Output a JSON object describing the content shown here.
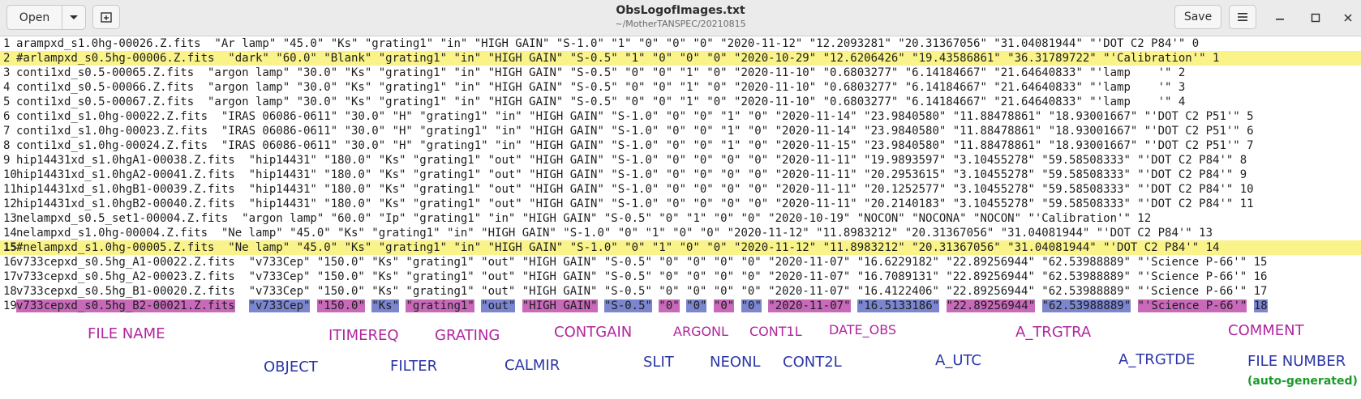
{
  "window": {
    "title": "ObsLogofImages.txt",
    "path": "~/MotherTANSPEC/20210815",
    "open_label": "Open",
    "save_label": "Save"
  },
  "lines": [
    {
      "num": "1",
      "text": "arampxd_s1.0hg-00026.Z.fits  \"Ar lamp\" \"45.0\" \"Ks\" \"grating1\" \"in\" \"HIGH GAIN\" \"S-1.0\" \"1\" \"0\" \"0\" \"0\" \"2020-11-12\" \"12.2093281\" \"20.31367056\" \"31.04081944\" \"'DOT C2 P84'\" 0"
    },
    {
      "num": "2",
      "text": "#arlampxd_s0.5hg-00006.Z.fits  \"dark\" \"60.0\" \"Blank\" \"grating1\" \"in\" \"HIGH GAIN\" \"S-0.5\" \"1\" \"0\" \"0\" \"0\" \"2020-10-29\" \"12.6206426\" \"19.43586861\" \"36.31789722\" \"'Calibration'\" 1"
    },
    {
      "num": "3",
      "text": "conti1xd_s0.5-00065.Z.fits  \"argon lamp\" \"30.0\" \"Ks\" \"grating1\" \"in\" \"HIGH GAIN\" \"S-0.5\" \"0\" \"0\" \"1\" \"0\" \"2020-11-10\" \"0.6803277\" \"6.14184667\" \"21.64640833\" \"'lamp    '\" 2"
    },
    {
      "num": "4",
      "text": "conti1xd_s0.5-00066.Z.fits  \"argon lamp\" \"30.0\" \"Ks\" \"grating1\" \"in\" \"HIGH GAIN\" \"S-0.5\" \"0\" \"0\" \"1\" \"0\" \"2020-11-10\" \"0.6803277\" \"6.14184667\" \"21.64640833\" \"'lamp    '\" 3"
    },
    {
      "num": "5",
      "text": "conti1xd_s0.5-00067.Z.fits  \"argon lamp\" \"30.0\" \"Ks\" \"grating1\" \"in\" \"HIGH GAIN\" \"S-0.5\" \"0\" \"0\" \"1\" \"0\" \"2020-11-10\" \"0.6803277\" \"6.14184667\" \"21.64640833\" \"'lamp    '\" 4"
    },
    {
      "num": "6",
      "text": "conti1xd_s1.0hg-00022.Z.fits  \"IRAS 06086-0611\" \"30.0\" \"H\" \"grating1\" \"in\" \"HIGH GAIN\" \"S-1.0\" \"0\" \"0\" \"1\" \"0\" \"2020-11-14\" \"23.9840580\" \"11.88478861\" \"18.93001667\" \"'DOT C2 P51'\" 5"
    },
    {
      "num": "7",
      "text": "conti1xd_s1.0hg-00023.Z.fits  \"IRAS 06086-0611\" \"30.0\" \"H\" \"grating1\" \"in\" \"HIGH GAIN\" \"S-1.0\" \"0\" \"0\" \"1\" \"0\" \"2020-11-14\" \"23.9840580\" \"11.88478861\" \"18.93001667\" \"'DOT C2 P51'\" 6"
    },
    {
      "num": "8",
      "text": "conti1xd_s1.0hg-00024.Z.fits  \"IRAS 06086-0611\" \"30.0\" \"H\" \"grating1\" \"in\" \"HIGH GAIN\" \"S-1.0\" \"0\" \"0\" \"1\" \"0\" \"2020-11-15\" \"23.9840580\" \"11.88478861\" \"18.93001667\" \"'DOT C2 P51'\" 7"
    },
    {
      "num": "9",
      "text": "hip14431xd_s1.0hgA1-00038.Z.fits  \"hip14431\" \"180.0\" \"Ks\" \"grating1\" \"out\" \"HIGH GAIN\" \"S-1.0\" \"0\" \"0\" \"0\" \"0\" \"2020-11-11\" \"19.9893597\" \"3.10455278\" \"59.58508333\" \"'DOT C2 P84'\" 8"
    },
    {
      "num": "10",
      "text": "hip14431xd_s1.0hgA2-00041.Z.fits  \"hip14431\" \"180.0\" \"Ks\" \"grating1\" \"out\" \"HIGH GAIN\" \"S-1.0\" \"0\" \"0\" \"0\" \"0\" \"2020-11-11\" \"20.2953615\" \"3.10455278\" \"59.58508333\" \"'DOT C2 P84'\" 9"
    },
    {
      "num": "11",
      "text": "hip14431xd_s1.0hgB1-00039.Z.fits  \"hip14431\" \"180.0\" \"Ks\" \"grating1\" \"out\" \"HIGH GAIN\" \"S-1.0\" \"0\" \"0\" \"0\" \"0\" \"2020-11-11\" \"20.1252577\" \"3.10455278\" \"59.58508333\" \"'DOT C2 P84'\" 10"
    },
    {
      "num": "12",
      "text": "hip14431xd_s1.0hgB2-00040.Z.fits  \"hip14431\" \"180.0\" \"Ks\" \"grating1\" \"out\" \"HIGH GAIN\" \"S-1.0\" \"0\" \"0\" \"0\" \"0\" \"2020-11-11\" \"20.2140183\" \"3.10455278\" \"59.58508333\" \"'DOT C2 P84'\" 11"
    },
    {
      "num": "13",
      "text": "nelampxd_s0.5_set1-00004.Z.fits  \"argon lamp\" \"60.0\" \"Ip\" \"grating1\" \"in\" \"HIGH GAIN\" \"S-0.5\" \"0\" \"1\" \"0\" \"0\" \"2020-10-19\" \"NOCON\" \"NOCONA\" \"NOCON\" \"'Calibration'\" 12"
    },
    {
      "num": "14",
      "text": "nelampxd_s1.0hg-00004.Z.fits  \"Ne lamp\" \"45.0\" \"Ks\" \"grating1\" \"in\" \"HIGH GAIN\" \"S-1.0\" \"0\" \"1\" \"0\" \"0\" \"2020-11-12\" \"11.8983212\" \"20.31367056\" \"31.04081944\" \"'DOT C2 P84'\" 13"
    },
    {
      "num": "15",
      "text": "#nelampxd_s1.0hg-00005.Z.fits  \"Ne lamp\" \"45.0\" \"Ks\" \"grating1\" \"in\" \"HIGH GAIN\" \"S-1.0\" \"0\" \"1\" \"0\" \"0\" \"2020-11-12\" \"11.8983212\" \"20.31367056\" \"31.04081944\" \"'DOT C2 P84'\" 14"
    },
    {
      "num": "16",
      "text": "v733cepxd_s0.5hg_A1-00022.Z.fits  \"v733Cep\" \"150.0\" \"Ks\" \"grating1\" \"out\" \"HIGH GAIN\" \"S-0.5\" \"0\" \"0\" \"0\" \"0\" \"2020-11-07\" \"16.6229182\" \"22.89256944\" \"62.53988889\" \"'Science P-66'\" 15"
    },
    {
      "num": "17",
      "text": "v733cepxd_s0.5hg_A2-00023.Z.fits  \"v733Cep\" \"150.0\" \"Ks\" \"grating1\" \"out\" \"HIGH GAIN\" \"S-0.5\" \"0\" \"0\" \"0\" \"0\" \"2020-11-07\" \"16.7089131\" \"22.89256944\" \"62.53988889\" \"'Science P-66'\" 16"
    },
    {
      "num": "18",
      "text": "v733cepxd_s0.5hg_B1-00020.Z.fits  \"v733Cep\" \"150.0\" \"Ks\" \"grating1\" \"out\" \"HIGH GAIN\" \"S-0.5\" \"0\" \"0\" \"0\" \"0\" \"2020-11-07\" \"16.4122406\" \"22.89256944\" \"62.53988889\" \"'Science P-66'\" 17"
    }
  ],
  "line19": {
    "num": "19",
    "segments": [
      {
        "text": "v733cepxd_s0.5hg_B2-00021.Z.fits",
        "color": "#c86ab9"
      },
      {
        "text": "  ",
        "color": ""
      },
      {
        "text": "\"v733Cep\"",
        "color": "#7b86cf"
      },
      {
        "text": " ",
        "color": ""
      },
      {
        "text": "\"150.0\"",
        "color": "#c86ab9"
      },
      {
        "text": " ",
        "color": ""
      },
      {
        "text": "\"Ks\"",
        "color": "#7b86cf"
      },
      {
        "text": " ",
        "color": ""
      },
      {
        "text": "\"grating1\"",
        "color": "#c86ab9"
      },
      {
        "text": " ",
        "color": ""
      },
      {
        "text": "\"out\"",
        "color": "#7b86cf"
      },
      {
        "text": " ",
        "color": ""
      },
      {
        "text": "\"HIGH GAIN\"",
        "color": "#c86ab9"
      },
      {
        "text": " ",
        "color": ""
      },
      {
        "text": "\"S-0.5\"",
        "color": "#7b86cf"
      },
      {
        "text": " ",
        "color": ""
      },
      {
        "text": "\"0\"",
        "color": "#c86ab9"
      },
      {
        "text": " ",
        "color": ""
      },
      {
        "text": "\"0\"",
        "color": "#7b86cf"
      },
      {
        "text": " ",
        "color": ""
      },
      {
        "text": "\"0\"",
        "color": "#c86ab9"
      },
      {
        "text": " ",
        "color": ""
      },
      {
        "text": "\"0\"",
        "color": "#7b86cf"
      },
      {
        "text": " ",
        "color": ""
      },
      {
        "text": "\"2020-11-07\"",
        "color": "#c86ab9"
      },
      {
        "text": " ",
        "color": ""
      },
      {
        "text": "\"16.5133186\"",
        "color": "#7b86cf"
      },
      {
        "text": " ",
        "color": ""
      },
      {
        "text": "\"22.89256944\"",
        "color": "#c86ab9"
      },
      {
        "text": " ",
        "color": ""
      },
      {
        "text": "\"62.53988889\"",
        "color": "#7b86cf"
      },
      {
        "text": " ",
        "color": ""
      },
      {
        "text": "\"'Science P-66'\"",
        "color": "#c86ab9"
      },
      {
        "text": " ",
        "color": ""
      },
      {
        "text": "18",
        "color": "#7b86cf"
      }
    ]
  },
  "labels": {
    "file_name": "FILE NAME",
    "object": "OBJECT",
    "itimereq": "ITIMEREQ",
    "filter": "FILTER",
    "grating": "GRATING",
    "calmir": "CALMIR",
    "contgain": "CONTGAIN",
    "slit": "SLIT",
    "argonl": "ARGONL",
    "neonl": "NEONL",
    "cont1l": "CONT1L",
    "cont2l": "CONT2L",
    "date_obs": "DATE_OBS",
    "a_utc": "A_UTC",
    "a_trgtra": "A_TRGTRA",
    "a_trgtde": "A_TRGTDE",
    "comment": "COMMENT",
    "file_number": "FILE NUMBER",
    "auto_generated": "(auto-generated)"
  },
  "colors": {
    "line_highlight": "#f9f38a",
    "label_magenta": "#b0279e",
    "label_blue": "#2b36a6",
    "label_green": "#1b9a2a"
  },
  "icons": {
    "open_dropdown": "chevron-down-icon",
    "new_tab": "new-tab-icon",
    "menu": "hamburger-menu-icon",
    "minimize": "minimize-icon",
    "maximize": "maximize-icon",
    "close": "close-icon"
  }
}
